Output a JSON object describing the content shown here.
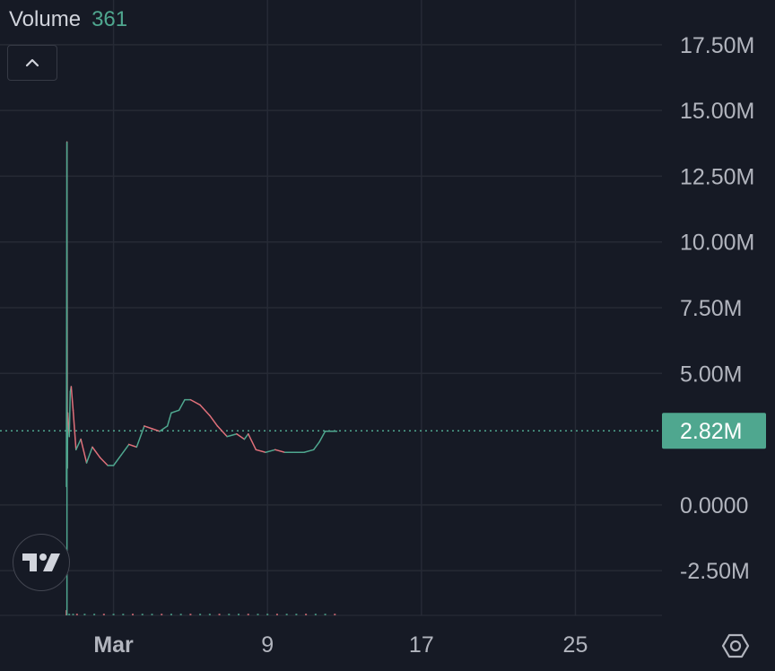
{
  "legend": {
    "name": "Volume",
    "value": "361"
  },
  "icons": {
    "collapse": "chevron-up-icon",
    "logo": "tradingview-logo-icon",
    "settings": "settings-icon"
  },
  "colors": {
    "background": "#161a25",
    "grid": "#262a35",
    "line_up": "#4fa78f",
    "line_down": "#e0707a",
    "last_value": "#4fa78f",
    "axis_text": "#b2b5be"
  },
  "chart_data": {
    "type": "line",
    "y_axis": {
      "ticks": [
        {
          "value": 17500000,
          "label": "17.50M"
        },
        {
          "value": 15000000,
          "label": "15.00M"
        },
        {
          "value": 12500000,
          "label": "12.50M"
        },
        {
          "value": 10000000,
          "label": "10.00M"
        },
        {
          "value": 7500000,
          "label": "7.50M"
        },
        {
          "value": 5000000,
          "label": "5.00M"
        },
        {
          "value": 0,
          "label": "0.0000"
        },
        {
          "value": -2500000,
          "label": "-2.50M"
        }
      ],
      "ylim": [
        -4200000,
        19200000
      ]
    },
    "x_axis": {
      "ticks": [
        {
          "value": 1,
          "label": "Mar"
        },
        {
          "value": 9,
          "label": "9"
        },
        {
          "value": 17,
          "label": "17"
        },
        {
          "value": 25,
          "label": "25"
        }
      ],
      "xlim": [
        -4.9,
        29.5
      ]
    },
    "last_value": {
      "value": 2820000,
      "label": "2.82M"
    },
    "series": [
      {
        "x": [
          -1.45,
          -1.42,
          -1.4,
          -1.38,
          -1.3,
          -1.25,
          -1.2,
          -1.1,
          -0.95,
          -0.7,
          -0.4,
          -0.1,
          0.3,
          0.7,
          1.0,
          1.4,
          1.8,
          2.2,
          2.6,
          3.0,
          3.4,
          3.8,
          4.0,
          4.4,
          4.7,
          5.0,
          5.5,
          6.0,
          6.4,
          6.9,
          7.4,
          7.8,
          8.0,
          8.4,
          8.9,
          9.4,
          9.9,
          10.4,
          10.9,
          11.4,
          11.7,
          12.0,
          12.3,
          12.6
        ],
        "y": [
          0.7,
          13.8,
          1.4,
          3.5,
          2.6,
          4.3,
          4.5,
          3.6,
          2.1,
          2.5,
          1.6,
          2.2,
          1.8,
          1.5,
          1.5,
          1.9,
          2.3,
          2.2,
          3.0,
          2.9,
          2.8,
          3.0,
          3.5,
          3.6,
          4.0,
          4.0,
          3.8,
          3.4,
          3.0,
          2.6,
          2.7,
          2.5,
          2.7,
          2.1,
          2.0,
          2.1,
          2.0,
          2.0,
          2.0,
          2.1,
          2.4,
          2.8,
          2.8,
          2.8
        ]
      }
    ],
    "volume_bars": {
      "x": [
        -1.45,
        -1.3,
        -1.1,
        -0.9,
        -0.5,
        0.0,
        0.5,
        1.0,
        1.5,
        2.0,
        2.5,
        3.0,
        3.5,
        4.0,
        4.5,
        5.0,
        5.5,
        6.0,
        6.5,
        7.0,
        7.5,
        8.0,
        8.5,
        9.0,
        9.5,
        10.0,
        10.5,
        11.0,
        11.5,
        12.0,
        12.5
      ],
      "y": [
        -4.0,
        -4.15,
        -4.2,
        -4.22,
        -4.24,
        -4.25,
        -4.26,
        -4.26,
        -4.27,
        -4.27,
        -4.27,
        -4.27,
        -4.27,
        -4.27,
        -4.27,
        -4.27,
        -4.27,
        -4.27,
        -4.28,
        -4.28,
        -4.28,
        -4.28,
        -4.28,
        -4.28,
        -4.28,
        -4.28,
        -4.28,
        -4.28,
        -4.28,
        -4.28,
        -4.28
      ]
    }
  }
}
